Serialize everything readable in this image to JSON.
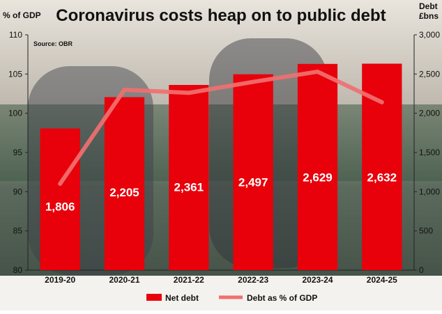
{
  "chart_data": {
    "type": "bar",
    "title": "Coronavirus costs heap on to public debt",
    "source": "Source: OBR",
    "left_axis_label": "% of GDP",
    "right_axis_label_lines": [
      "Debt",
      "£bns"
    ],
    "categories": [
      "2019-20",
      "2020-21",
      "2021-22",
      "2022-23",
      "2023-24",
      "2024-25"
    ],
    "left_axis": {
      "min": 80,
      "max": 110,
      "ticks": [
        80,
        85,
        90,
        95,
        100,
        105,
        110
      ]
    },
    "right_axis": {
      "min": 0,
      "max": 3000,
      "ticks": [
        0,
        500,
        1000,
        1500,
        2000,
        2500,
        3000
      ],
      "tick_labels": [
        "0",
        "500",
        "1,000",
        "1,500",
        "2,000",
        "2,500",
        "3,000"
      ]
    },
    "series": [
      {
        "name": "Net debt",
        "kind": "bar",
        "axis": "right",
        "values": [
          1806,
          2205,
          2361,
          2497,
          2629,
          2632
        ],
        "labels": [
          "1,806",
          "2,205",
          "2,361",
          "2,497",
          "2,629",
          "2,632"
        ],
        "color": "#e8000b"
      },
      {
        "name": "Debt as % of GDP",
        "kind": "line",
        "axis": "left",
        "values": [
          91.0,
          103.0,
          102.6,
          104.0,
          105.3,
          101.4
        ],
        "color": "#f07070"
      }
    ],
    "legend_position": "bottom",
    "grid": false
  }
}
